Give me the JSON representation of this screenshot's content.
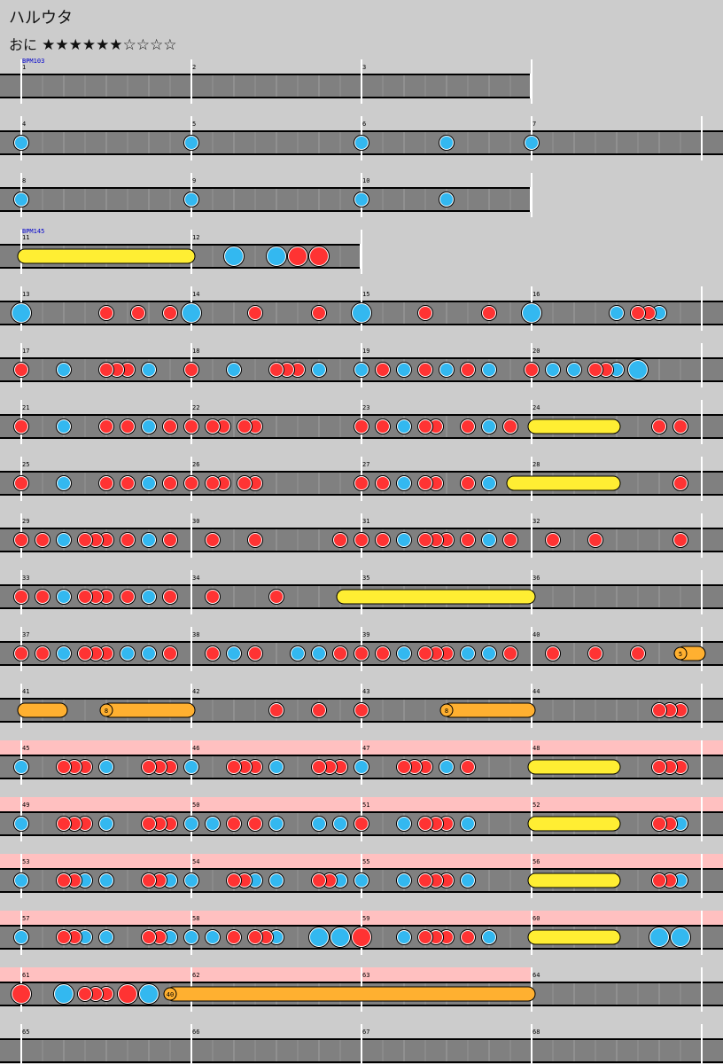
{
  "song": {
    "title": "ハルウタ",
    "course": "おに",
    "stars_filled": "★★★★★★",
    "stars_empty": "☆☆☆☆",
    "level": 6,
    "max_level": 10
  },
  "colors": {
    "background": "#cccccc",
    "lane": "#808080",
    "gogo": "#ffc0c0",
    "don": "#ff3333",
    "ka": "#33b8f0",
    "roll": "#ffee33",
    "balloon": "#ffb030",
    "bpm_text": "#0000cc"
  },
  "bpm_marks": [
    {
      "measure": 1,
      "label": "BPM103"
    },
    {
      "measure": 11,
      "label": "BPM145"
    }
  ],
  "gogo_measures": [
    45,
    63
  ],
  "rows": [
    {
      "start": 1,
      "measures": 3,
      "notes": []
    },
    {
      "start": 4,
      "measures": 4,
      "notes": [
        [
          0,
          "k"
        ],
        [
          1,
          "k"
        ],
        [
          2,
          "k"
        ],
        [
          2.5,
          "k"
        ],
        [
          3,
          "k"
        ]
      ]
    },
    {
      "start": 8,
      "measures": 3,
      "notes": [
        [
          0,
          "k"
        ],
        [
          1,
          "k"
        ],
        [
          2,
          "k"
        ],
        [
          2.5,
          "k"
        ]
      ]
    },
    {
      "start": 11,
      "measures": 2,
      "rolls": [
        [
          0,
          1,
          "roll"
        ]
      ],
      "notes": [
        [
          1.25,
          "K"
        ],
        [
          1.5,
          "K"
        ],
        [
          1.625,
          "D"
        ],
        [
          1.75,
          "D"
        ]
      ]
    },
    {
      "start": 13,
      "measures": 4,
      "notes": [
        [
          0,
          "K"
        ],
        [
          0.5,
          "d"
        ],
        [
          0.6875,
          "d"
        ],
        [
          0.875,
          "d"
        ],
        [
          1,
          "K"
        ],
        [
          1.375,
          "d"
        ],
        [
          1.75,
          "d"
        ],
        [
          2,
          "K"
        ],
        [
          2.375,
          "d"
        ],
        [
          2.75,
          "d"
        ],
        [
          3,
          "K"
        ],
        [
          3.5,
          "k"
        ],
        [
          3.625,
          "d"
        ],
        [
          3.6875,
          "d"
        ],
        [
          3.75,
          "k"
        ]
      ]
    },
    {
      "start": 17,
      "measures": 4,
      "notes": [
        [
          0,
          "d"
        ],
        [
          0.25,
          "k"
        ],
        [
          0.5,
          "d"
        ],
        [
          0.5625,
          "d"
        ],
        [
          0.625,
          "d"
        ],
        [
          0.75,
          "k"
        ],
        [
          1,
          "d"
        ],
        [
          1.25,
          "k"
        ],
        [
          1.5,
          "d"
        ],
        [
          1.5625,
          "d"
        ],
        [
          1.625,
          "d"
        ],
        [
          1.75,
          "k"
        ],
        [
          2,
          "k"
        ],
        [
          2.125,
          "d"
        ],
        [
          2.25,
          "k"
        ],
        [
          2.375,
          "d"
        ],
        [
          2.5,
          "k"
        ],
        [
          2.625,
          "d"
        ],
        [
          2.75,
          "k"
        ],
        [
          3,
          "d"
        ],
        [
          3.125,
          "k"
        ],
        [
          3.25,
          "k"
        ],
        [
          3.375,
          "d"
        ],
        [
          3.4375,
          "d"
        ],
        [
          3.5,
          "k"
        ],
        [
          3.625,
          "K"
        ]
      ]
    },
    {
      "start": 21,
      "measures": 4,
      "rolls": [
        [
          3,
          3.5,
          "roll"
        ]
      ],
      "notes": [
        [
          0,
          "d"
        ],
        [
          0.25,
          "k"
        ],
        [
          0.5,
          "d"
        ],
        [
          0.625,
          "d"
        ],
        [
          0.75,
          "k"
        ],
        [
          0.875,
          "d"
        ],
        [
          1,
          "d"
        ],
        [
          1.125,
          "d"
        ],
        [
          1.1875,
          "d"
        ],
        [
          1.3125,
          "d"
        ],
        [
          1.375,
          "d"
        ],
        [
          2,
          "d"
        ],
        [
          2.125,
          "d"
        ],
        [
          2.25,
          "k"
        ],
        [
          2.375,
          "d"
        ],
        [
          2.4375,
          "d"
        ],
        [
          2.625,
          "d"
        ],
        [
          2.75,
          "k"
        ],
        [
          2.875,
          "d"
        ],
        [
          3.75,
          "d"
        ],
        [
          3.875,
          "d"
        ]
      ]
    },
    {
      "start": 25,
      "measures": 4,
      "rolls": [
        [
          2.875,
          3.5,
          "roll"
        ]
      ],
      "notes": [
        [
          0,
          "d"
        ],
        [
          0.25,
          "k"
        ],
        [
          0.5,
          "d"
        ],
        [
          0.625,
          "d"
        ],
        [
          0.75,
          "k"
        ],
        [
          0.875,
          "d"
        ],
        [
          1,
          "d"
        ],
        [
          1.125,
          "d"
        ],
        [
          1.1875,
          "d"
        ],
        [
          1.3125,
          "d"
        ],
        [
          1.375,
          "d"
        ],
        [
          2,
          "d"
        ],
        [
          2.125,
          "d"
        ],
        [
          2.25,
          "k"
        ],
        [
          2.375,
          "d"
        ],
        [
          2.4375,
          "d"
        ],
        [
          2.625,
          "d"
        ],
        [
          2.75,
          "k"
        ],
        [
          3.875,
          "d"
        ]
      ]
    },
    {
      "start": 29,
      "measures": 4,
      "notes": [
        [
          0,
          "d"
        ],
        [
          0.125,
          "d"
        ],
        [
          0.25,
          "k"
        ],
        [
          0.375,
          "d"
        ],
        [
          0.4375,
          "d"
        ],
        [
          0.5,
          "d"
        ],
        [
          0.625,
          "d"
        ],
        [
          0.75,
          "k"
        ],
        [
          0.875,
          "d"
        ],
        [
          1.125,
          "d"
        ],
        [
          1.375,
          "d"
        ],
        [
          1.875,
          "d"
        ],
        [
          2,
          "d"
        ],
        [
          2.125,
          "d"
        ],
        [
          2.25,
          "k"
        ],
        [
          2.375,
          "d"
        ],
        [
          2.4375,
          "d"
        ],
        [
          2.5,
          "d"
        ],
        [
          2.625,
          "d"
        ],
        [
          2.75,
          "k"
        ],
        [
          2.875,
          "d"
        ],
        [
          3.125,
          "d"
        ],
        [
          3.375,
          "d"
        ],
        [
          3.875,
          "d"
        ]
      ]
    },
    {
      "start": 33,
      "measures": 4,
      "rolls": [
        [
          1.875,
          3,
          "roll"
        ]
      ],
      "notes": [
        [
          0,
          "d"
        ],
        [
          0.125,
          "d"
        ],
        [
          0.25,
          "k"
        ],
        [
          0.375,
          "d"
        ],
        [
          0.4375,
          "d"
        ],
        [
          0.5,
          "d"
        ],
        [
          0.625,
          "d"
        ],
        [
          0.75,
          "k"
        ],
        [
          0.875,
          "d"
        ],
        [
          1.125,
          "d"
        ],
        [
          1.5,
          "d"
        ]
      ]
    },
    {
      "start": 37,
      "measures": 4,
      "rolls": [
        [
          3.875,
          4,
          "balloon"
        ]
      ],
      "notes": [
        [
          0,
          "d"
        ],
        [
          0.125,
          "d"
        ],
        [
          0.25,
          "k"
        ],
        [
          0.375,
          "d"
        ],
        [
          0.4375,
          "d"
        ],
        [
          0.5,
          "d"
        ],
        [
          0.625,
          "k"
        ],
        [
          0.75,
          "k"
        ],
        [
          0.875,
          "d"
        ],
        [
          1.125,
          "d"
        ],
        [
          1.25,
          "k"
        ],
        [
          1.375,
          "d"
        ],
        [
          1.625,
          "k"
        ],
        [
          1.75,
          "k"
        ],
        [
          1.875,
          "d"
        ],
        [
          2,
          "d"
        ],
        [
          2.125,
          "d"
        ],
        [
          2.25,
          "k"
        ],
        [
          2.375,
          "d"
        ],
        [
          2.4375,
          "d"
        ],
        [
          2.5,
          "d"
        ],
        [
          2.625,
          "k"
        ],
        [
          2.75,
          "k"
        ],
        [
          2.875,
          "d"
        ],
        [
          3.125,
          "d"
        ],
        [
          3.375,
          "d"
        ],
        [
          3.625,
          "d"
        ]
      ],
      "balloons": [
        [
          3.875,
          "5"
        ]
      ]
    },
    {
      "start": 41,
      "measures": 4,
      "rolls": [
        [
          0,
          0.25,
          "balloon"
        ],
        [
          0.5,
          1,
          "balloon"
        ],
        [
          2.5,
          3,
          "balloon"
        ]
      ],
      "notes": [
        [
          1.5,
          "d"
        ],
        [
          1.75,
          "d"
        ],
        [
          2,
          "d"
        ],
        [
          3.75,
          "d"
        ],
        [
          3.8125,
          "d"
        ],
        [
          3.875,
          "d"
        ]
      ],
      "balloons": [
        [
          0.5,
          "8"
        ],
        [
          2.5,
          "8"
        ]
      ]
    },
    {
      "start": 45,
      "measures": 4,
      "rolls": [
        [
          3,
          3.5,
          "roll"
        ]
      ],
      "notes": [
        [
          0,
          "k"
        ],
        [
          0.25,
          "d"
        ],
        [
          0.3125,
          "d"
        ],
        [
          0.375,
          "d"
        ],
        [
          0.5,
          "k"
        ],
        [
          0.75,
          "d"
        ],
        [
          0.8125,
          "d"
        ],
        [
          0.875,
          "d"
        ],
        [
          1,
          "k"
        ],
        [
          1.25,
          "d"
        ],
        [
          1.3125,
          "d"
        ],
        [
          1.375,
          "d"
        ],
        [
          1.5,
          "k"
        ],
        [
          1.75,
          "d"
        ],
        [
          1.8125,
          "d"
        ],
        [
          1.875,
          "d"
        ],
        [
          2,
          "k"
        ],
        [
          2.25,
          "d"
        ],
        [
          2.3125,
          "d"
        ],
        [
          2.375,
          "d"
        ],
        [
          2.5,
          "k"
        ],
        [
          2.625,
          "d"
        ],
        [
          3.75,
          "d"
        ],
        [
          3.8125,
          "d"
        ],
        [
          3.875,
          "d"
        ]
      ]
    },
    {
      "start": 49,
      "measures": 4,
      "rolls": [
        [
          3,
          3.5,
          "roll"
        ]
      ],
      "notes": [
        [
          0,
          "k"
        ],
        [
          0.25,
          "d"
        ],
        [
          0.3125,
          "d"
        ],
        [
          0.375,
          "d"
        ],
        [
          0.5,
          "k"
        ],
        [
          0.75,
          "d"
        ],
        [
          0.8125,
          "d"
        ],
        [
          0.875,
          "d"
        ],
        [
          1,
          "k"
        ],
        [
          1.125,
          "k"
        ],
        [
          1.25,
          "d"
        ],
        [
          1.375,
          "d"
        ],
        [
          1.5,
          "k"
        ],
        [
          1.75,
          "k"
        ],
        [
          1.875,
          "k"
        ],
        [
          2,
          "d"
        ],
        [
          2.25,
          "k"
        ],
        [
          2.375,
          "d"
        ],
        [
          2.4375,
          "d"
        ],
        [
          2.5,
          "d"
        ],
        [
          2.625,
          "k"
        ],
        [
          3.75,
          "d"
        ],
        [
          3.8125,
          "d"
        ],
        [
          3.875,
          "k"
        ]
      ]
    },
    {
      "start": 53,
      "measures": 4,
      "rolls": [
        [
          3,
          3.5,
          "roll"
        ]
      ],
      "notes": [
        [
          0,
          "k"
        ],
        [
          0.25,
          "d"
        ],
        [
          0.3125,
          "d"
        ],
        [
          0.375,
          "k"
        ],
        [
          0.5,
          "k"
        ],
        [
          0.75,
          "d"
        ],
        [
          0.8125,
          "d"
        ],
        [
          0.875,
          "k"
        ],
        [
          1,
          "k"
        ],
        [
          1.25,
          "d"
        ],
        [
          1.3125,
          "d"
        ],
        [
          1.375,
          "k"
        ],
        [
          1.5,
          "k"
        ],
        [
          1.75,
          "d"
        ],
        [
          1.8125,
          "d"
        ],
        [
          1.875,
          "k"
        ],
        [
          2,
          "k"
        ],
        [
          2.25,
          "k"
        ],
        [
          2.375,
          "d"
        ],
        [
          2.4375,
          "d"
        ],
        [
          2.5,
          "d"
        ],
        [
          2.625,
          "k"
        ],
        [
          3.75,
          "d"
        ],
        [
          3.8125,
          "d"
        ],
        [
          3.875,
          "k"
        ]
      ]
    },
    {
      "start": 57,
      "measures": 4,
      "rolls": [
        [
          3,
          3.5,
          "roll"
        ]
      ],
      "notes": [
        [
          0,
          "k"
        ],
        [
          0.25,
          "d"
        ],
        [
          0.3125,
          "d"
        ],
        [
          0.375,
          "k"
        ],
        [
          0.5,
          "k"
        ],
        [
          0.75,
          "d"
        ],
        [
          0.8125,
          "d"
        ],
        [
          0.875,
          "k"
        ],
        [
          1,
          "k"
        ],
        [
          1.125,
          "k"
        ],
        [
          1.25,
          "d"
        ],
        [
          1.375,
          "d"
        ],
        [
          1.4375,
          "d"
        ],
        [
          1.5,
          "k"
        ],
        [
          1.75,
          "K"
        ],
        [
          1.875,
          "K"
        ],
        [
          2,
          "D"
        ],
        [
          2.25,
          "k"
        ],
        [
          2.375,
          "d"
        ],
        [
          2.4375,
          "d"
        ],
        [
          2.5,
          "d"
        ],
        [
          2.625,
          "d"
        ],
        [
          2.75,
          "k"
        ],
        [
          3.75,
          "K"
        ],
        [
          3.875,
          "K"
        ]
      ]
    },
    {
      "start": 61,
      "measures": 4,
      "rolls": [
        [
          0.875,
          3,
          "balloon"
        ]
      ],
      "notes": [
        [
          0,
          "D"
        ],
        [
          0.25,
          "K"
        ],
        [
          0.375,
          "d"
        ],
        [
          0.4375,
          "d"
        ],
        [
          0.5,
          "d"
        ],
        [
          0.625,
          "D"
        ],
        [
          0.75,
          "K"
        ]
      ],
      "balloons": [
        [
          0.875,
          "40"
        ]
      ]
    },
    {
      "start": 65,
      "measures": 4,
      "notes": []
    }
  ]
}
